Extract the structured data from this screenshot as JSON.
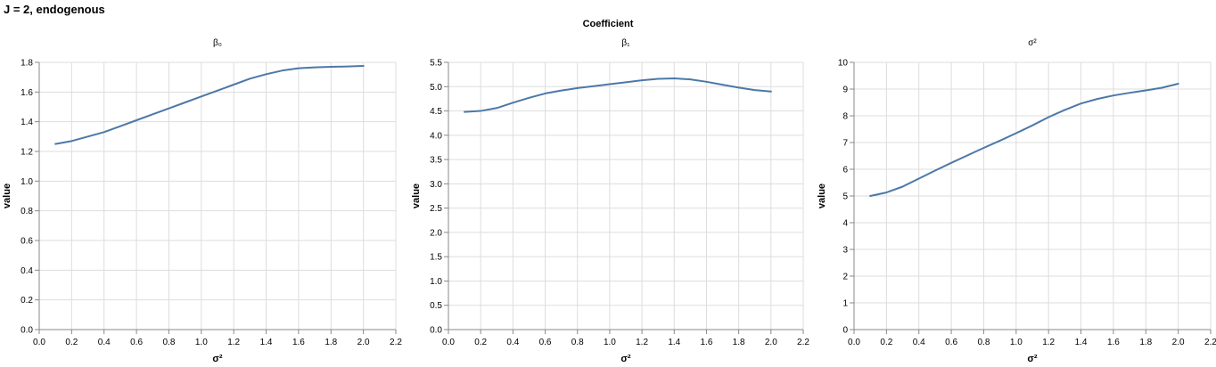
{
  "title": "J = 2, endogenous",
  "facet_header": "Coefficient",
  "colors": {
    "line": "#4c78a8",
    "grid": "#dddddd",
    "axis": "#888888",
    "text": "#000000"
  },
  "chart_data": [
    {
      "type": "line",
      "title": "β₀",
      "xlabel": "σ²",
      "ylabel": "value",
      "xlim": [
        0,
        2.2
      ],
      "ylim": [
        0,
        1.8
      ],
      "xticks": [
        0.0,
        0.2,
        0.4,
        0.6,
        0.8,
        1.0,
        1.2,
        1.4,
        1.6,
        1.8,
        2.0,
        2.2
      ],
      "yticks": [
        0.0,
        0.2,
        0.4,
        0.6,
        0.8,
        1.0,
        1.2,
        1.4,
        1.6,
        1.8
      ],
      "x": [
        0.1,
        0.2,
        0.3,
        0.4,
        0.5,
        0.6,
        0.7,
        0.8,
        0.9,
        1.0,
        1.1,
        1.2,
        1.3,
        1.4,
        1.5,
        1.6,
        1.7,
        1.8,
        1.9,
        2.0
      ],
      "values": [
        1.25,
        1.27,
        1.3,
        1.33,
        1.37,
        1.41,
        1.45,
        1.49,
        1.53,
        1.57,
        1.61,
        1.65,
        1.69,
        1.72,
        1.745,
        1.76,
        1.766,
        1.77,
        1.772,
        1.776
      ],
      "grid": true
    },
    {
      "type": "line",
      "title": "β₁",
      "xlabel": "σ²",
      "ylabel": "value",
      "xlim": [
        0,
        2.2
      ],
      "ylim": [
        0,
        5.5
      ],
      "xticks": [
        0.0,
        0.2,
        0.4,
        0.6,
        0.8,
        1.0,
        1.2,
        1.4,
        1.6,
        1.8,
        2.0,
        2.2
      ],
      "yticks": [
        0.0,
        0.5,
        1.0,
        1.5,
        2.0,
        2.5,
        3.0,
        3.5,
        4.0,
        4.5,
        5.0,
        5.5
      ],
      "x": [
        0.1,
        0.2,
        0.3,
        0.4,
        0.5,
        0.6,
        0.7,
        0.8,
        0.9,
        1.0,
        1.1,
        1.2,
        1.3,
        1.4,
        1.5,
        1.6,
        1.7,
        1.8,
        1.9,
        2.0
      ],
      "values": [
        4.48,
        4.5,
        4.56,
        4.67,
        4.77,
        4.86,
        4.92,
        4.97,
        5.01,
        5.05,
        5.09,
        5.13,
        5.16,
        5.17,
        5.15,
        5.1,
        5.04,
        4.98,
        4.93,
        4.9
      ],
      "grid": true
    },
    {
      "type": "line",
      "title": "σ²",
      "xlabel": "σ²",
      "ylabel": "value",
      "xlim": [
        0,
        2.2
      ],
      "ylim": [
        0,
        10
      ],
      "xticks": [
        0.0,
        0.2,
        0.4,
        0.6,
        0.8,
        1.0,
        1.2,
        1.4,
        1.6,
        1.8,
        2.0,
        2.2
      ],
      "yticks": [
        0,
        1,
        2,
        3,
        4,
        5,
        6,
        7,
        8,
        9,
        10
      ],
      "x": [
        0.1,
        0.2,
        0.3,
        0.4,
        0.5,
        0.6,
        0.7,
        0.8,
        0.9,
        1.0,
        1.1,
        1.2,
        1.3,
        1.4,
        1.5,
        1.6,
        1.7,
        1.8,
        1.9,
        2.0
      ],
      "values": [
        5.0,
        5.13,
        5.35,
        5.65,
        5.95,
        6.24,
        6.52,
        6.8,
        7.07,
        7.35,
        7.64,
        7.95,
        8.22,
        8.46,
        8.63,
        8.76,
        8.86,
        8.95,
        9.05,
        9.2
      ],
      "grid": true
    }
  ]
}
